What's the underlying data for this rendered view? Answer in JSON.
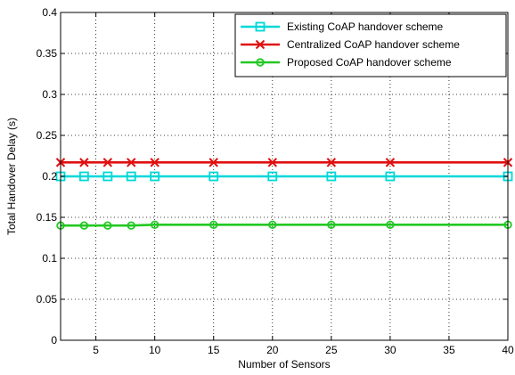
{
  "chart_data": {
    "type": "line",
    "xlabel": "Number of Sensors",
    "ylabel": "Total Handover Delay (s)",
    "xlim": [
      2,
      40
    ],
    "ylim": [
      0,
      0.4
    ],
    "xticks": [
      5,
      10,
      15,
      20,
      25,
      30,
      35,
      40
    ],
    "yticks": [
      0,
      0.05,
      0.1,
      0.15,
      0.2,
      0.25,
      0.3,
      0.35,
      0.4
    ],
    "grid": true,
    "legend_position": "top-right",
    "series": [
      {
        "name": "Existing CoAP handover scheme",
        "color": "#00d8d8",
        "marker": "square",
        "x": [
          2,
          4,
          6,
          8,
          10,
          15,
          20,
          25,
          30,
          40
        ],
        "y": [
          0.2,
          0.2,
          0.2,
          0.2,
          0.2,
          0.2,
          0.2,
          0.2,
          0.2,
          0.2
        ]
      },
      {
        "name": "Centralized CoAP handover scheme",
        "color": "#e01010",
        "marker": "x",
        "x": [
          2,
          4,
          6,
          8,
          10,
          15,
          20,
          25,
          30,
          40
        ],
        "y": [
          0.217,
          0.217,
          0.217,
          0.217,
          0.217,
          0.217,
          0.217,
          0.217,
          0.217,
          0.217
        ]
      },
      {
        "name": "Proposed CoAP handover scheme",
        "color": "#22c822",
        "marker": "circle",
        "x": [
          2,
          4,
          6,
          8,
          10,
          15,
          20,
          25,
          30,
          40
        ],
        "y": [
          0.14,
          0.14,
          0.14,
          0.14,
          0.141,
          0.141,
          0.141,
          0.141,
          0.141,
          0.141
        ]
      }
    ]
  }
}
